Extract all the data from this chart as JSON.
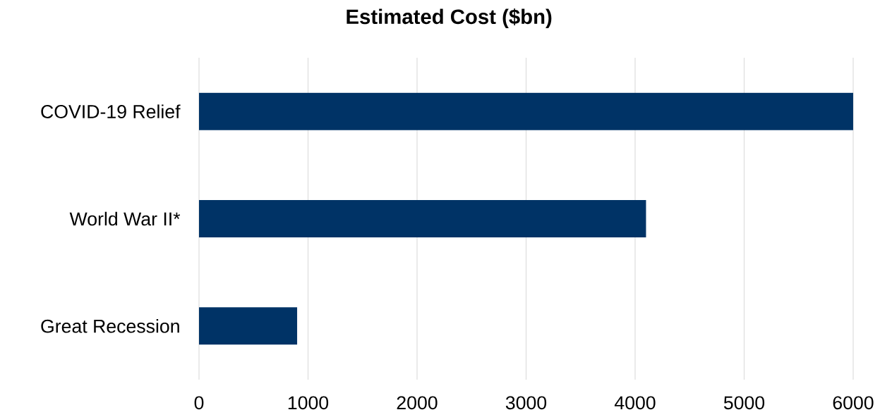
{
  "chart_data": {
    "type": "bar",
    "orientation": "horizontal",
    "title": "Estimated Cost ($bn)",
    "categories": [
      "COVID-19 Relief",
      "World War II*",
      "Great Recession"
    ],
    "values": [
      6000,
      4100,
      900
    ],
    "color": "#003366",
    "xlim": [
      0,
      6000
    ],
    "xticks": [
      0,
      1000,
      2000,
      3000,
      4000,
      5000,
      6000
    ],
    "grid": "x"
  }
}
